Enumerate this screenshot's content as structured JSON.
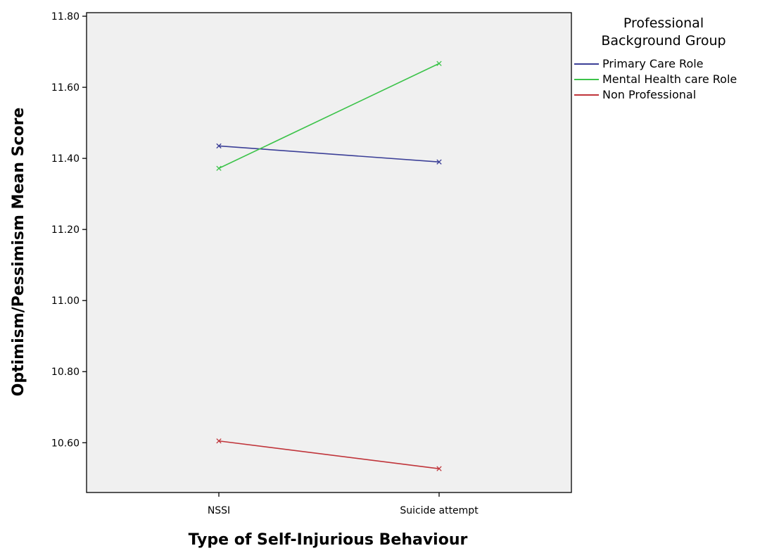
{
  "chart_data": {
    "type": "line",
    "xlabel": "Type of Self-Injurious Behaviour",
    "ylabel": "Optimism/Pessimism Mean Score",
    "categories": [
      "NSSI",
      "Suicide attempt"
    ],
    "ylim": [
      10.46,
      11.81
    ],
    "yticks": [
      "10.60",
      "10.80",
      "11.00",
      "11.20",
      "11.40",
      "11.60",
      "11.80"
    ],
    "ytick_values": [
      10.6,
      10.8,
      11.0,
      11.2,
      11.4,
      11.6,
      11.8
    ],
    "grid": false,
    "plot_background": "#f0f0f0",
    "legend": {
      "title_line1": "Professional",
      "title_line2": "Background Group",
      "placement": "top-right outside plot"
    },
    "series": [
      {
        "name": "Primary Care Role",
        "values": [
          11.435,
          11.39
        ],
        "color": "#3b3f97"
      },
      {
        "name": "Mental Health care Role",
        "values": [
          11.372,
          11.667
        ],
        "color": "#3cc34a"
      },
      {
        "name": "Non Professional",
        "values": [
          10.605,
          10.527
        ],
        "color": "#c0343a"
      }
    ]
  }
}
